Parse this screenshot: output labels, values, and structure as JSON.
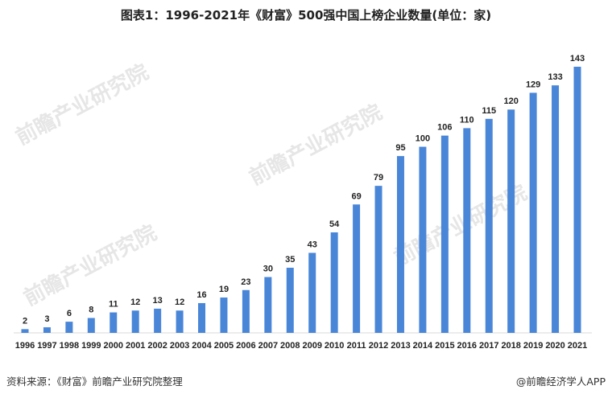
{
  "chart_data": {
    "type": "bar",
    "title": "图表1：1996-2021年《财富》500强中国上榜企业数量(单位：家)",
    "categories": [
      "1996",
      "1997",
      "1998",
      "1999",
      "2000",
      "2001",
      "2002",
      "2003",
      "2004",
      "2005",
      "2006",
      "2007",
      "2008",
      "2009",
      "2010",
      "2011",
      "2012",
      "2013",
      "2014",
      "2015",
      "2016",
      "2017",
      "2018",
      "2019",
      "2020",
      "2021"
    ],
    "values": [
      2,
      3,
      6,
      8,
      11,
      12,
      13,
      12,
      16,
      19,
      23,
      30,
      35,
      43,
      54,
      69,
      79,
      95,
      100,
      106,
      110,
      115,
      120,
      129,
      133,
      143
    ],
    "xlabel": "",
    "ylabel": "",
    "ylim": [
      0,
      143
    ],
    "grid": false,
    "bar_color": "#4a86d8",
    "data_labels": true
  },
  "footer": {
    "source": "资料来源：《财富》前瞻产业研究院整理",
    "brand": "@前瞻经济学人APP"
  },
  "watermark": "前瞻产业研究院"
}
